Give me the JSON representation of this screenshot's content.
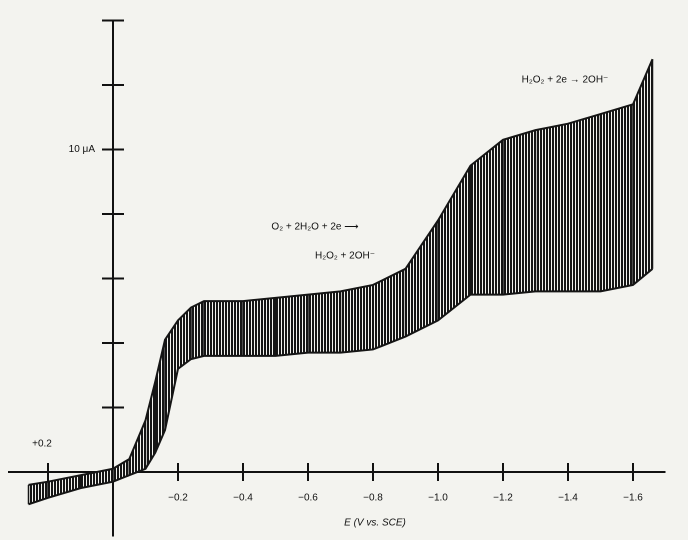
{
  "chart_data": {
    "type": "band",
    "x_label": "E (V vs. SCE)",
    "annotations": [
      "H₂O₂ + 2e → 2OH⁻",
      "O₂ + 2H₂O + 2e ⟶",
      "H₂O₂ + 2OH⁻"
    ],
    "x": [
      0.26,
      0.2,
      0.1,
      0,
      -0.05,
      -0.1,
      -0.13,
      -0.16,
      -0.2,
      -0.24,
      -0.28,
      -0.4,
      -0.5,
      -0.6,
      -0.7,
      -0.8,
      -0.9,
      -1.0,
      -1.1,
      -1.2,
      -1.3,
      -1.4,
      -1.5,
      -1.6,
      -1.66
    ],
    "series": [
      {
        "color": "#151515",
        "values": [
          -0.4,
          -0.3,
          -0.1,
          0.1,
          0.4,
          1.6,
          2.8,
          4.1,
          4.7,
          5.1,
          5.3,
          5.3,
          5.4,
          5.5,
          5.6,
          5.8,
          6.3,
          7.8,
          9.5,
          10.3,
          10.6,
          10.8,
          11.1,
          11.4,
          12.8
        ]
      },
      {
        "color": "#151515",
        "values": [
          -1.0,
          -0.8,
          -0.5,
          -0.3,
          -0.1,
          0.1,
          0.6,
          1.3,
          3.2,
          3.5,
          3.6,
          3.6,
          3.6,
          3.7,
          3.7,
          3.8,
          4.2,
          4.7,
          5.5,
          5.5,
          5.6,
          5.6,
          5.6,
          5.8,
          6.3
        ]
      }
    ],
    "xlim": [
      0.3,
      -1.7
    ],
    "ylim": [
      -2,
      14
    ],
    "xticks": [
      {
        "value": 0.2,
        "label": "+0.2"
      },
      {
        "value": -0.2,
        "label": "−0.2"
      },
      {
        "value": -0.4,
        "label": "−0.4"
      },
      {
        "value": -0.6,
        "label": "−0.6"
      },
      {
        "value": -0.8,
        "label": "−0.8"
      },
      {
        "value": -1.0,
        "label": "−1.0"
      },
      {
        "value": -1.2,
        "label": "−1.2"
      },
      {
        "value": -1.4,
        "label": "−1.4"
      },
      {
        "value": -1.6,
        "label": "−1.6"
      }
    ],
    "yticks": [
      2,
      4,
      6,
      8,
      {
        "value": 10,
        "label": "10 μA"
      },
      12,
      14
    ]
  }
}
